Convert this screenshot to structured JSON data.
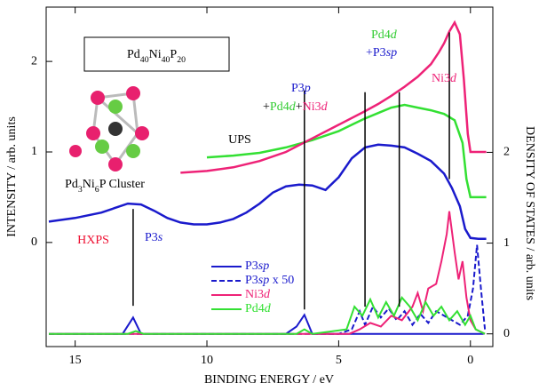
{
  "chart_data": {
    "type": "line",
    "xlabel": "BINDING ENERGY / eV",
    "ylabel": "INTENSITY / arb. units",
    "y2label": "DENSITY OF STATES / arb. units",
    "xlim": [
      16.1,
      -0.85
    ],
    "ylim": [
      -1.15,
      2.6
    ],
    "y2lim": [
      -0.14,
      3.6
    ],
    "xticks": [
      15,
      10,
      5,
      0
    ],
    "yticks": [
      0,
      1,
      2
    ],
    "y2ticks": [
      0,
      1,
      2
    ],
    "spectra": [
      {
        "color": "#1a1acc",
        "x": [
          16,
          15,
          14,
          13.5,
          13,
          12.5,
          12,
          11.5,
          11,
          10.5,
          10,
          9.5,
          9,
          8.5,
          8,
          7.5,
          7,
          6.5,
          6,
          5.5,
          5,
          4.5,
          4,
          3.5,
          3,
          2.5,
          2,
          1.5,
          1,
          0.7,
          0.4,
          0.2,
          0,
          -0.3,
          -0.6
        ],
        "values": [
          0.23,
          0.27,
          0.33,
          0.38,
          0.43,
          0.42,
          0.35,
          0.27,
          0.22,
          0.2,
          0.2,
          0.22,
          0.26,
          0.33,
          0.43,
          0.55,
          0.62,
          0.64,
          0.63,
          0.58,
          0.72,
          0.93,
          1.05,
          1.08,
          1.07,
          1.05,
          0.98,
          0.9,
          0.76,
          0.6,
          0.4,
          0.15,
          0.05,
          0.04,
          0.04
        ]
      },
      {
        "color": "#33e033",
        "x": [
          10,
          9,
          8,
          7,
          6,
          5,
          4.5,
          4,
          3.5,
          3,
          2.5,
          2,
          1.5,
          1,
          0.6,
          0.3,
          0.15,
          0,
          -0.3,
          -0.6
        ],
        "values": [
          0.94,
          0.96,
          0.99,
          1.05,
          1.13,
          1.23,
          1.3,
          1.37,
          1.43,
          1.49,
          1.52,
          1.49,
          1.46,
          1.42,
          1.35,
          1.1,
          0.7,
          0.5,
          0.5,
          0.5
        ]
      },
      {
        "color": "#ee2277",
        "x": [
          11,
          10,
          9,
          8,
          7,
          6,
          5,
          4,
          3.5,
          3,
          2.5,
          2,
          1.5,
          1.2,
          1,
          0.8,
          0.6,
          0.4,
          0.25,
          0.1,
          0,
          -0.3,
          -0.6
        ],
        "values": [
          0.77,
          0.79,
          0.83,
          0.9,
          1.0,
          1.15,
          1.3,
          1.45,
          1.53,
          1.62,
          1.72,
          1.83,
          1.97,
          2.1,
          2.2,
          2.33,
          2.43,
          2.3,
          1.8,
          1.2,
          1.0,
          1.0,
          1.0
        ]
      }
    ],
    "series": [
      {
        "name": "P3sp",
        "color": "#1a1acc",
        "axis": "y2",
        "dashed": false,
        "x": [
          16,
          13.2,
          12.8,
          12.5,
          12.0,
          7.0,
          6.6,
          6.3,
          6.0,
          5.5,
          4,
          3,
          2,
          1,
          0,
          -0.5
        ],
        "values": [
          0,
          0,
          0.18,
          0,
          0,
          0,
          0.08,
          0.21,
          0,
          0,
          0,
          0,
          0,
          0,
          0,
          0
        ]
      },
      {
        "name": "P3sp x 50",
        "color": "#1a1acc",
        "axis": "y2",
        "dashed": true,
        "x": [
          16,
          5,
          4.5,
          4.2,
          4,
          3.7,
          3.4,
          3.1,
          2.8,
          2.5,
          2.2,
          1.9,
          1.6,
          1.3,
          1.0,
          0.7,
          0.4,
          0.1,
          -0.1,
          -0.25,
          -0.4,
          -0.55
        ],
        "values": [
          0,
          0,
          0.05,
          0.25,
          0.1,
          0.3,
          0.18,
          0.28,
          0.15,
          0.25,
          0.1,
          0.22,
          0.12,
          0.25,
          0.2,
          0.15,
          0.1,
          0.2,
          0.5,
          0.98,
          0.5,
          0.05
        ]
      },
      {
        "name": "Ni3d",
        "color": "#ee2277",
        "axis": "y2",
        "dashed": false,
        "x": [
          16,
          4.6,
          4.2,
          3.8,
          3.4,
          3,
          2.6,
          2.2,
          2.0,
          1.8,
          1.6,
          1.3,
          1.1,
          0.9,
          0.8,
          0.6,
          0.45,
          0.3,
          0.15,
          0,
          -0.2,
          -0.55
        ],
        "values": [
          0,
          0,
          0.05,
          0.12,
          0.08,
          0.2,
          0.15,
          0.3,
          0.45,
          0.25,
          0.5,
          0.55,
          0.8,
          1.1,
          1.35,
          0.9,
          0.6,
          0.8,
          0.4,
          0.15,
          0.05,
          0
        ]
      },
      {
        "name": "Pd4d",
        "color": "#33e033",
        "axis": "y2",
        "dashed": false,
        "x": [
          16,
          13.0,
          12.7,
          12.4,
          6.6,
          6.3,
          6.0,
          4.7,
          4.4,
          4.1,
          3.8,
          3.5,
          3.2,
          2.9,
          2.6,
          2.3,
          2.0,
          1.7,
          1.4,
          1.1,
          0.8,
          0.5,
          0.2,
          0,
          -0.2,
          -0.55
        ],
        "values": [
          0,
          0,
          0.03,
          0,
          0,
          0.05,
          0,
          0.05,
          0.3,
          0.2,
          0.38,
          0.18,
          0.35,
          0.2,
          0.4,
          0.3,
          0.15,
          0.35,
          0.2,
          0.3,
          0.15,
          0.25,
          0.1,
          0.2,
          0.05,
          0
        ]
      }
    ],
    "guide_lines": [
      {
        "x": 12.8,
        "from": 0.37,
        "to": -0.7
      },
      {
        "x": 6.3,
        "from": 1.68,
        "to": -0.74
      },
      {
        "x": 4.0,
        "from": 1.66,
        "to": -0.71
      },
      {
        "x": 2.7,
        "from": 1.66,
        "to": -0.71
      },
      {
        "x": 0.8,
        "from": 2.32,
        "to": 0.7
      }
    ],
    "annotations": [
      {
        "text": "Pd40Ni40P20",
        "style": "formula",
        "color": "#000000"
      },
      {
        "text": "Pd3Ni6P Cluster",
        "style": "formula",
        "color": "#000000"
      },
      {
        "text": "UPS",
        "color": "#000000"
      },
      {
        "text": "HXPS",
        "color": "#ee1133"
      },
      {
        "text": "P3s",
        "style": "orbital",
        "color": "#1a1acc"
      },
      {
        "text": "P3p",
        "style": "orbital",
        "color": "#1a1acc"
      },
      {
        "text": "+",
        "color": "#000000"
      },
      {
        "text": "Pd4d",
        "style": "orbital",
        "color": "#33cc33"
      },
      {
        "text": "+",
        "color": "#000000"
      },
      {
        "text": "Ni3d",
        "style": "orbital",
        "color": "#ee2277"
      },
      {
        "text": "Pd4d",
        "style": "orbital",
        "color": "#33cc33"
      },
      {
        "text": "+P3sp",
        "style": "orbital",
        "color": "#1a1acc"
      },
      {
        "text": "Ni3d",
        "style": "orbital",
        "color": "#ee2277"
      }
    ]
  }
}
